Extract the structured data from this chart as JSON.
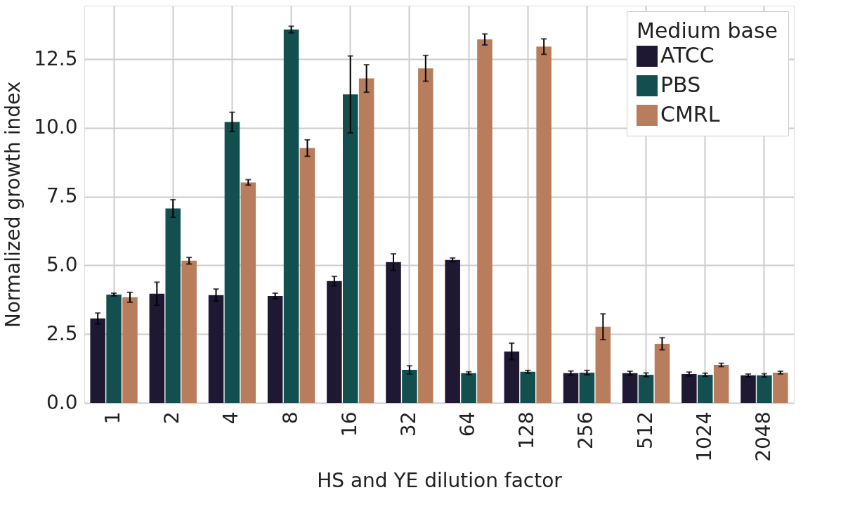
{
  "chart_data": {
    "type": "bar",
    "xlabel": "HS and YE dilution factor",
    "ylabel": "Normalized growth index",
    "legend_title": "Medium base",
    "categories": [
      "1",
      "2",
      "4",
      "8",
      "16",
      "32",
      "64",
      "128",
      "256",
      "512",
      "1024",
      "2048"
    ],
    "series": [
      {
        "name": "ATCC",
        "color": "#1e1833",
        "values": [
          3.07,
          3.97,
          3.92,
          3.89,
          4.43,
          5.12,
          5.2,
          1.87,
          1.08,
          1.08,
          1.05,
          1.0
        ],
        "errors": [
          0.2,
          0.42,
          0.22,
          0.1,
          0.17,
          0.3,
          0.07,
          0.3,
          0.08,
          0.07,
          0.07,
          0.05
        ]
      },
      {
        "name": "PBS",
        "color": "#134f4f",
        "values": [
          3.94,
          7.07,
          10.22,
          13.58,
          11.22,
          1.2,
          1.08,
          1.13,
          1.1,
          1.02,
          1.02,
          1.0
        ],
        "errors": [
          0.05,
          0.32,
          0.35,
          0.12,
          1.4,
          0.15,
          0.05,
          0.05,
          0.08,
          0.07,
          0.06,
          0.06
        ]
      },
      {
        "name": "CMRL",
        "color": "#b87d5c",
        "values": [
          3.84,
          5.17,
          8.02,
          9.27,
          11.8,
          12.17,
          13.22,
          12.96,
          2.77,
          2.15,
          1.38,
          1.1
        ],
        "errors": [
          0.18,
          0.12,
          0.1,
          0.3,
          0.5,
          0.47,
          0.2,
          0.28,
          0.47,
          0.22,
          0.06,
          0.05
        ]
      }
    ],
    "ylim": [
      0,
      14.45
    ],
    "yticks": [
      {
        "value": 0,
        "label": "0.0"
      },
      {
        "value": 2.5,
        "label": "2.5"
      },
      {
        "value": 5,
        "label": "5.0"
      },
      {
        "value": 7.5,
        "label": "7.5"
      },
      {
        "value": 10,
        "label": "10.0"
      },
      {
        "value": 12.5,
        "label": "12.5"
      }
    ],
    "grid": true,
    "legend": "top right"
  }
}
